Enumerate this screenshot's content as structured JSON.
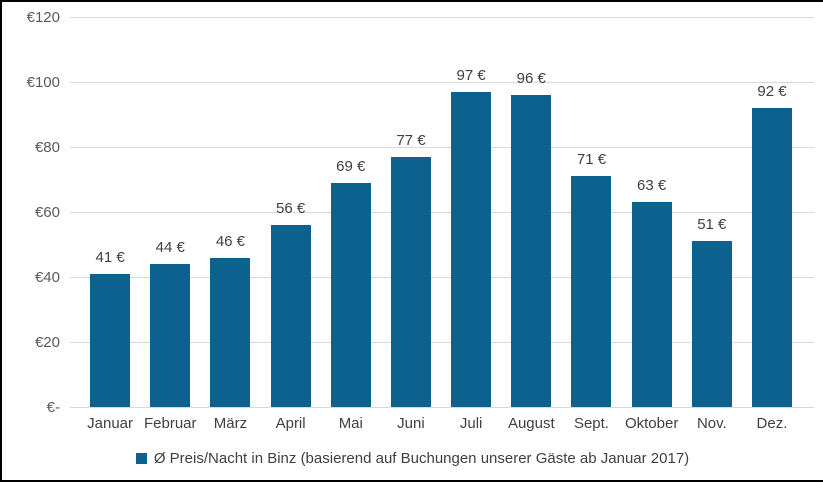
{
  "chart_data": {
    "type": "bar",
    "title": "",
    "categories": [
      "Januar",
      "Februar",
      "März",
      "April",
      "Mai",
      "Juni",
      "Juli",
      "August",
      "Sept.",
      "Oktober",
      "Nov.",
      "Dez."
    ],
    "values": [
      41,
      44,
      46,
      56,
      69,
      77,
      97,
      96,
      71,
      63,
      51,
      92
    ],
    "value_labels": [
      "41 €",
      "44 €",
      "46 €",
      "56 €",
      "69 €",
      "77 €",
      "97 €",
      "96 €",
      "71 €",
      "63 €",
      "51 €",
      "92 €"
    ],
    "y_ticks": [
      {
        "label": "€120",
        "value": 120
      },
      {
        "label": "€100",
        "value": 100
      },
      {
        "label": "€80",
        "value": 80
      },
      {
        "label": "€60",
        "value": 60
      },
      {
        "label": "€40",
        "value": 40
      },
      {
        "label": "€20",
        "value": 20
      },
      {
        "label": "€-",
        "value": 0
      }
    ],
    "ylim": [
      0,
      120
    ],
    "grid": true,
    "legend": "Ø Preis/Nacht in Binz (basierend auf Buchungen unserer Gäste ab Januar 2017)",
    "legend_position": "bottom",
    "colors": {
      "bar": "#0d618f",
      "grid": "#d9d9d9",
      "y_tick_text": "#595959",
      "label_text": "#404040",
      "background": "#ffffff",
      "frame_border": "#000000"
    }
  }
}
